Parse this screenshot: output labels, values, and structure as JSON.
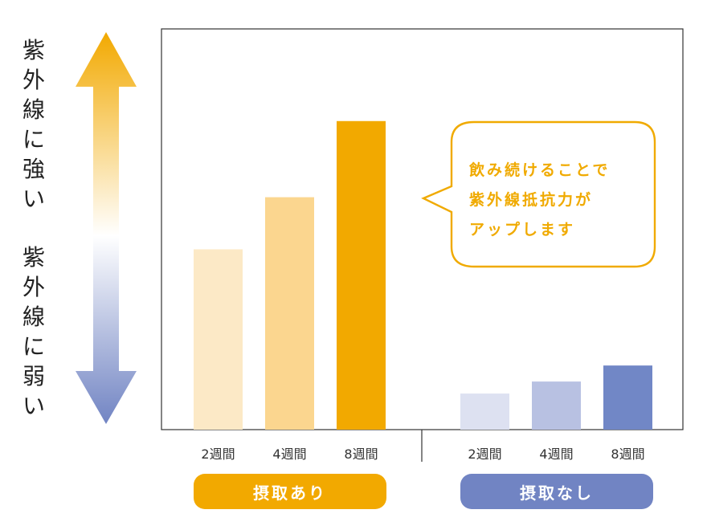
{
  "side_labels": {
    "top": [
      "紫",
      "外",
      "線",
      "に",
      "強",
      "い"
    ],
    "bottom": [
      "紫",
      "外",
      "線",
      "に",
      "弱",
      "い"
    ]
  },
  "colors": {
    "with_light": "#fce9c6",
    "with_mid": "#fbd68f",
    "with_dark": "#f2a900",
    "without_light": "#dde1f1",
    "without_mid": "#b8c1e2",
    "without_dark": "#7187c6",
    "arrow_top": "#f2a900",
    "arrow_bottom": "#7184c3",
    "callout": "#f0aa00"
  },
  "callout": {
    "lines": [
      "飲み続けることで",
      "紫外線抵抗力が",
      "アップします"
    ]
  },
  "chart_data": {
    "type": "bar",
    "groups": [
      {
        "label": "摂取あり",
        "categories": [
          "2週間",
          "4週間",
          "8週間"
        ],
        "values": [
          45,
          58,
          77
        ],
        "colors": [
          "#fce9c6",
          "#fbd68f",
          "#f2a900"
        ]
      },
      {
        "label": "摂取なし",
        "categories": [
          "2週間",
          "4週間",
          "8週間"
        ],
        "values": [
          9,
          12,
          16
        ],
        "colors": [
          "#dde1f1",
          "#b8c1e2",
          "#7187c6"
        ]
      }
    ],
    "ylim": [
      0,
      100
    ],
    "grid": false,
    "legend": "none"
  }
}
